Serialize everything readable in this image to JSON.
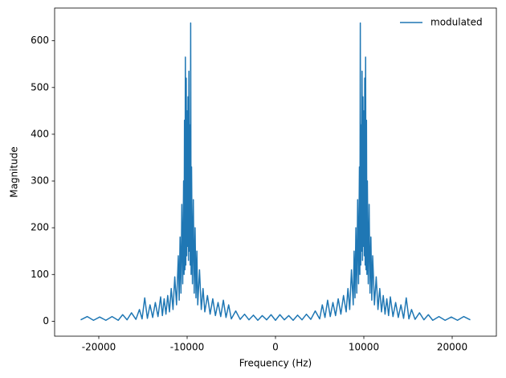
{
  "chart_data": {
    "type": "line",
    "xlabel": "Frequency (Hz)",
    "ylabel": "Magnitude",
    "x": [
      -22050,
      -21300,
      -20600,
      -19900,
      -19200,
      -18500,
      -17800,
      -17300,
      -16800,
      -16300,
      -15800,
      -15400,
      -15100,
      -14800,
      -14500,
      -14200,
      -13900,
      -13600,
      -13300,
      -13000,
      -12800,
      -12600,
      -12400,
      -12200,
      -12000,
      -11800,
      -11600,
      -11400,
      -11200,
      -11000,
      -10900,
      -10800,
      -10700,
      -10600,
      -10500,
      -10400,
      -10350,
      -10300,
      -10250,
      -10200,
      -10150,
      -10100,
      -10050,
      -10000,
      -9950,
      -9900,
      -9850,
      -9800,
      -9750,
      -9700,
      -9650,
      -9600,
      -9550,
      -9500,
      -9400,
      -9300,
      -9200,
      -9100,
      -9000,
      -8900,
      -8800,
      -8600,
      -8400,
      -8200,
      -8000,
      -7700,
      -7400,
      -7100,
      -6800,
      -6500,
      -6200,
      -5900,
      -5600,
      -5300,
      -5000,
      -4500,
      -4000,
      -3500,
      -3000,
      -2500,
      -2000,
      -1500,
      -1000,
      -500,
      0,
      500,
      1000,
      1500,
      2000,
      2500,
      3000,
      3500,
      4000,
      4500,
      5000,
      5300,
      5600,
      5900,
      6200,
      6500,
      6800,
      7100,
      7400,
      7700,
      8000,
      8200,
      8400,
      8600,
      8800,
      8900,
      9000,
      9100,
      9200,
      9300,
      9400,
      9500,
      9550,
      9600,
      9650,
      9700,
      9750,
      9800,
      9850,
      9900,
      9950,
      10000,
      10050,
      10100,
      10150,
      10200,
      10250,
      10300,
      10350,
      10400,
      10500,
      10600,
      10700,
      10800,
      10900,
      11000,
      11200,
      11400,
      11600,
      11800,
      12000,
      12200,
      12400,
      12600,
      12800,
      13000,
      13300,
      13600,
      13900,
      14200,
      14500,
      14800,
      15100,
      15400,
      15800,
      16300,
      16800,
      17300,
      17800,
      18500,
      19200,
      19900,
      20600,
      21300,
      22050
    ],
    "series": [
      {
        "name": "modulated",
        "color": "#1f77b4",
        "values": [
          3,
          10,
          2,
          9,
          2,
          10,
          2,
          14,
          3,
          18,
          4,
          25,
          5,
          50,
          6,
          35,
          8,
          40,
          10,
          52,
          12,
          48,
          15,
          55,
          20,
          70,
          25,
          95,
          35,
          140,
          45,
          180,
          60,
          250,
          80,
          300,
          100,
          430,
          110,
          565,
          120,
          520,
          140,
          450,
          160,
          480,
          130,
          535,
          150,
          420,
          120,
          638,
          100,
          330,
          80,
          260,
          60,
          200,
          50,
          150,
          35,
          110,
          25,
          70,
          20,
          55,
          15,
          48,
          12,
          40,
          10,
          45,
          8,
          35,
          5,
          22,
          4,
          15,
          3,
          13,
          2,
          12,
          3,
          14,
          2,
          14,
          3,
          12,
          2,
          13,
          3,
          15,
          4,
          22,
          5,
          35,
          8,
          45,
          10,
          40,
          12,
          48,
          15,
          55,
          20,
          70,
          25,
          110,
          35,
          150,
          50,
          200,
          60,
          260,
          80,
          330,
          100,
          638,
          120,
          420,
          150,
          535,
          130,
          480,
          160,
          450,
          140,
          520,
          120,
          565,
          110,
          430,
          100,
          300,
          80,
          250,
          60,
          180,
          45,
          140,
          35,
          95,
          25,
          70,
          20,
          55,
          15,
          48,
          12,
          52,
          10,
          40,
          8,
          35,
          6,
          50,
          5,
          25,
          4,
          18,
          3,
          14,
          2,
          10,
          2,
          9,
          2,
          10,
          3
        ]
      }
    ],
    "xlim": [
      -25000,
      25000
    ],
    "xticks": [
      -20000,
      -10000,
      0,
      10000,
      20000
    ],
    "ylim": [
      -32,
      670
    ],
    "yticks": [
      0,
      100,
      200,
      300,
      400,
      500,
      600
    ],
    "legend": "upper right"
  }
}
